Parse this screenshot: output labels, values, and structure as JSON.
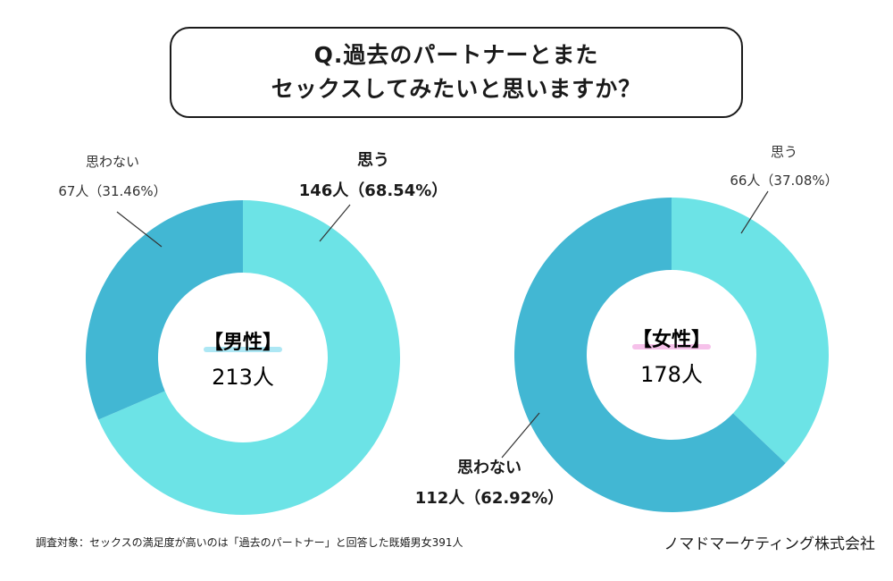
{
  "title": {
    "line1": "Q.過去のパートナーとまた",
    "line2": "セックスしてみたいと思いますか？"
  },
  "chart_data": [
    {
      "type": "pie",
      "group": "【男性】",
      "total_label": "213人",
      "total": 213,
      "slices": [
        {
          "name": "思う",
          "count_label": "146人（68.54%）",
          "count": 146,
          "percent": 68.54,
          "color": "#6ce3e6"
        },
        {
          "name": "思わない",
          "count_label": "67人（31.46%）",
          "count": 67,
          "percent": 31.46,
          "color": "#42b7d3"
        }
      ]
    },
    {
      "type": "pie",
      "group": "【女性】",
      "total_label": "178人",
      "total": 178,
      "slices": [
        {
          "name": "思う",
          "count_label": "66人（37.08%）",
          "count": 66,
          "percent": 37.08,
          "color": "#6ce3e6"
        },
        {
          "name": "思わない",
          "count_label": "112人（62.92%）",
          "count": 112,
          "percent": 62.92,
          "color": "#42b7d3"
        }
      ]
    }
  ],
  "colors": {
    "male_highlight": "#9fe3f2",
    "female_highlight": "#f5b6e6"
  },
  "footnote": "調査対象：セックスの満足度が高いのは「過去のパートナー」と回答した既婚男女391人",
  "credit": "ノマドマーケティング株式会社"
}
